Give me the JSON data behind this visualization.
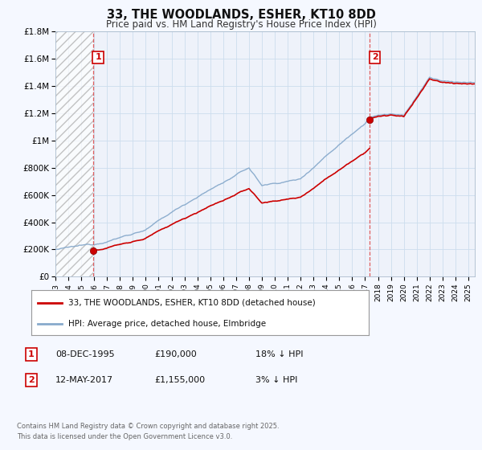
{
  "title": "33, THE WOODLANDS, ESHER, KT10 8DD",
  "subtitle": "Price paid vs. HM Land Registry's House Price Index (HPI)",
  "sale1_t": 1995.917,
  "sale1_price": 190000,
  "sale2_t": 2017.375,
  "sale2_price": 1155000,
  "legend_line1": "33, THE WOODLANDS, ESHER, KT10 8DD (detached house)",
  "legend_line2": "HPI: Average price, detached house, Elmbridge",
  "footnote": "Contains HM Land Registry data © Crown copyright and database right 2025.\nThis data is licensed under the Open Government Licence v3.0.",
  "color_red": "#cc0000",
  "color_blue": "#88aacc",
  "color_dashed": "#dd4444",
  "ylim_min": 0,
  "ylim_max": 1800000,
  "xlim_min": 1993.0,
  "xlim_max": 2025.5,
  "fig_bg": "#f5f8ff",
  "plot_bg": "#eef2fa"
}
